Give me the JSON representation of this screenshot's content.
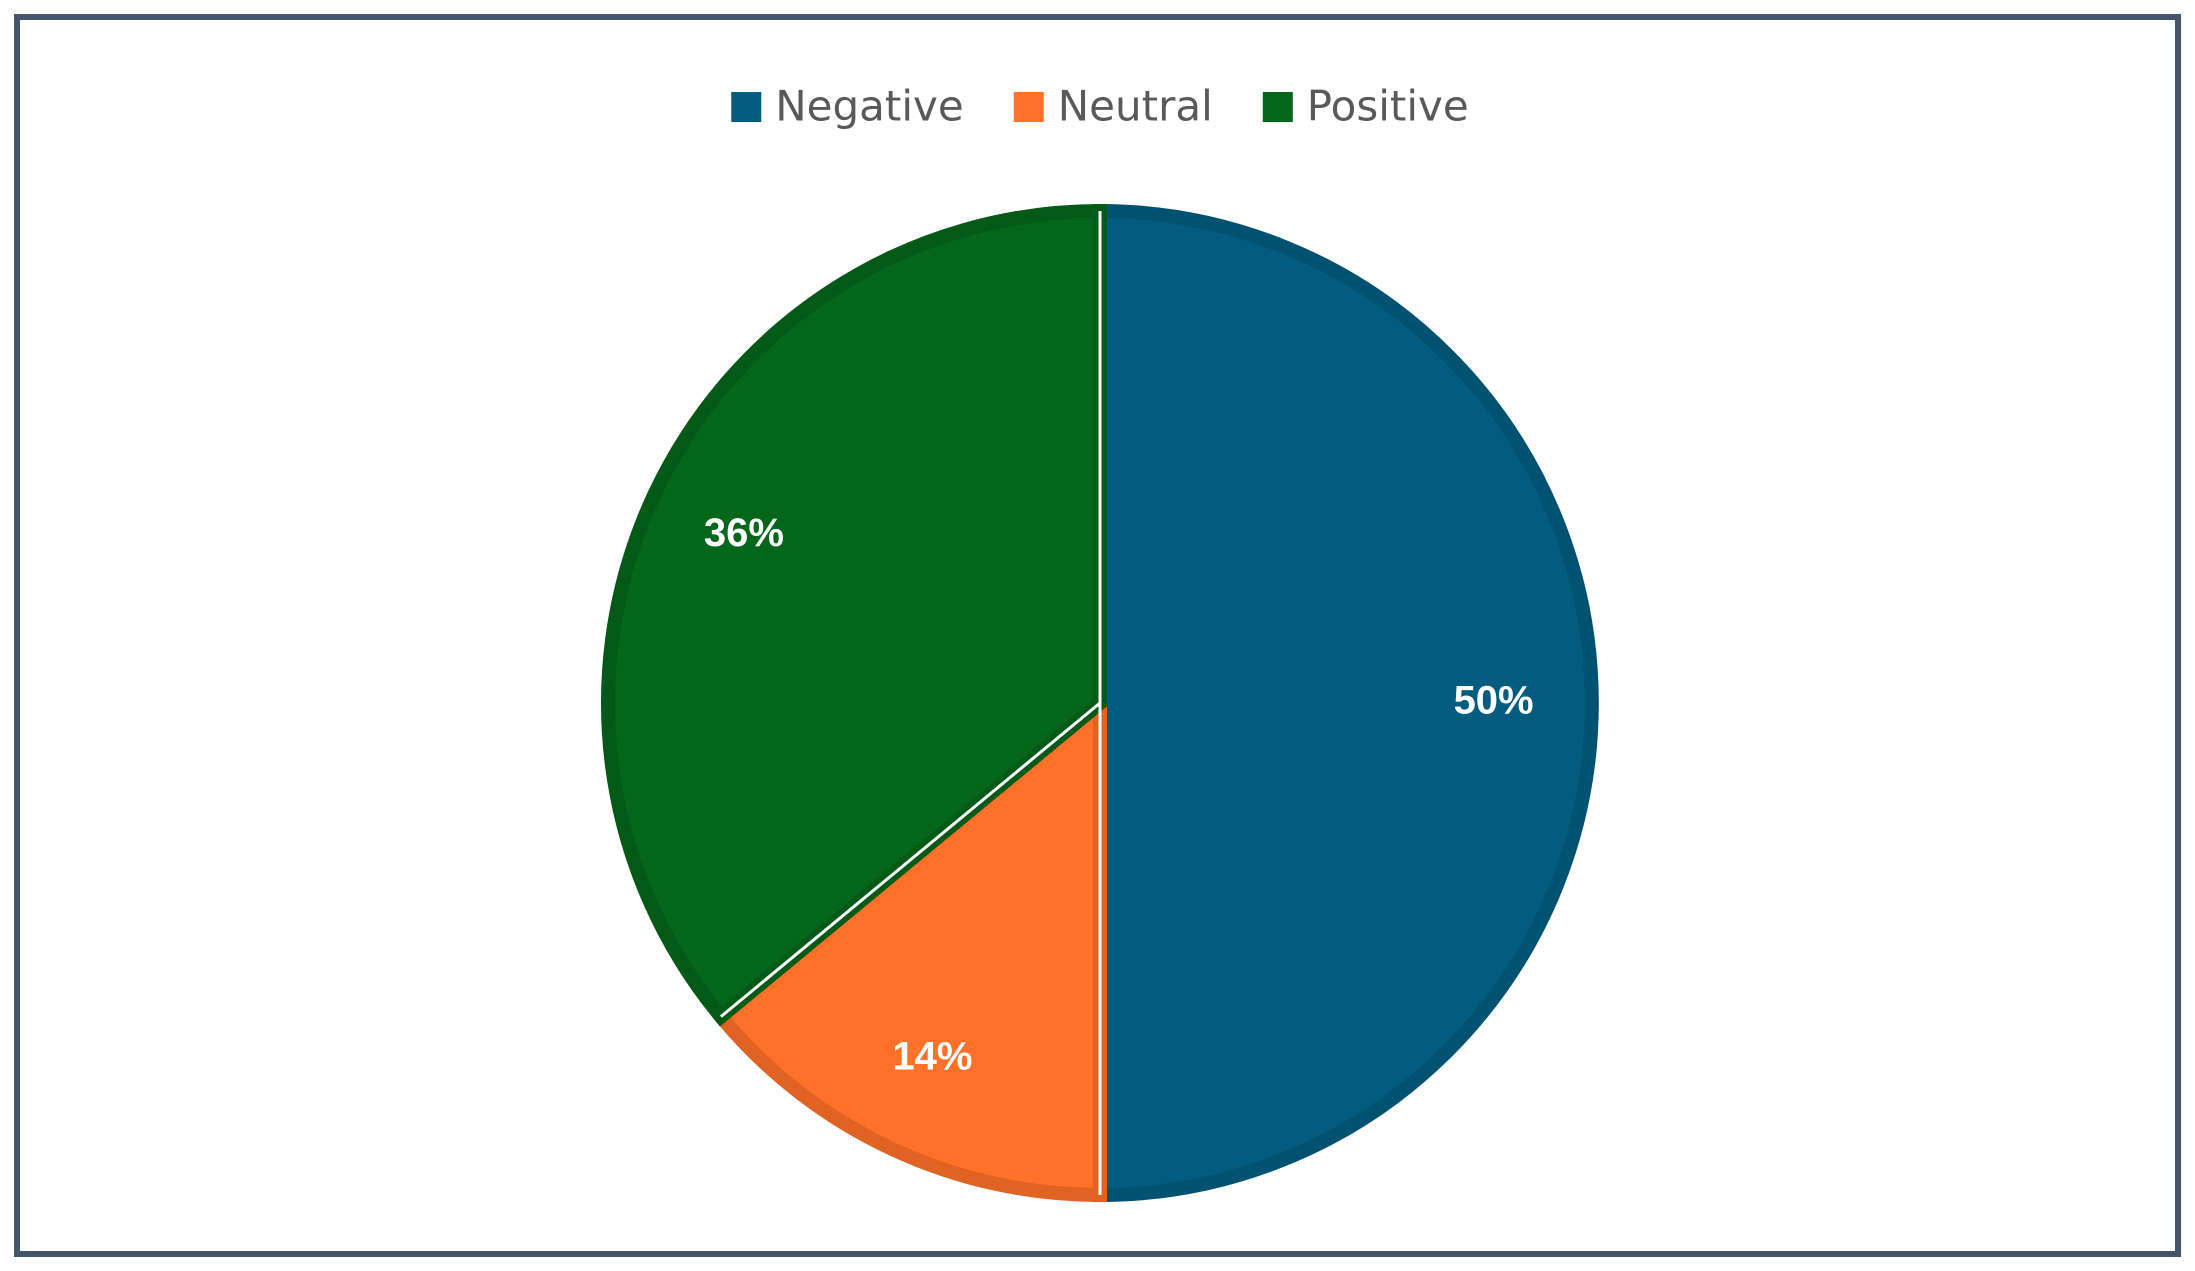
{
  "chart_data": {
    "type": "pie",
    "categories": [
      "Negative",
      "Neutral",
      "Positive"
    ],
    "values": [
      50,
      14,
      36
    ],
    "value_labels": [
      "50%",
      "14%",
      "36%"
    ],
    "colors": [
      "#015c80",
      "#ff7028",
      "#03661a"
    ],
    "legend": "top"
  }
}
